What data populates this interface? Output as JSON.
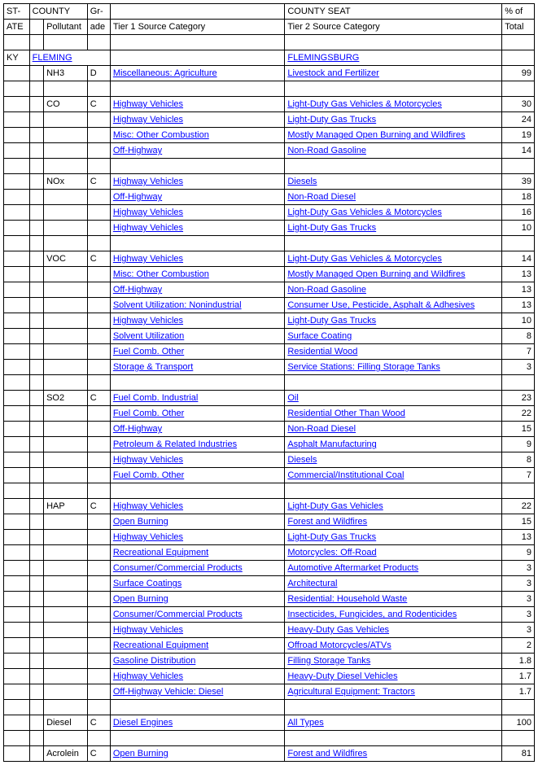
{
  "headers": {
    "row1": {
      "state": "ST-",
      "county": "COUNTY",
      "grade": "Gr-",
      "county_seat": "COUNTY SEAT",
      "pct": "% of"
    },
    "row2": {
      "state": "ATE",
      "pollutant": "Pollutant",
      "grade": "ade",
      "tier1": "Tier 1 Source Category",
      "tier2": "Tier 2 Source Category",
      "pct": "Total"
    }
  },
  "location": {
    "state": "KY",
    "county": "FLEMING",
    "seat": "FLEMINGSBURG"
  },
  "rows": [
    {
      "pollutant": "NH3",
      "grade": "D",
      "tier1": "Miscellaneous: Agriculture",
      "tier2": "Livestock and Fertilizer",
      "pct": "99"
    },
    {
      "blank": true
    },
    {
      "pollutant": "CO",
      "grade": "C",
      "tier1": "Highway Vehicles",
      "tier2": "Light-Duty Gas Vehicles & Motorcycles",
      "pct": "30"
    },
    {
      "tier1": "Highway Vehicles",
      "tier2": "Light-Duty Gas Trucks",
      "pct": "24"
    },
    {
      "tier1": "Misc: Other Combustion",
      "tier2": "Mostly Managed Open Burning and Wildfires",
      "pct": "19"
    },
    {
      "tier1": "Off-Highway",
      "tier2": "Non-Road Gasoline",
      "pct": "14"
    },
    {
      "blank": true
    },
    {
      "pollutant": "NOx",
      "grade": "C",
      "tier1": "Highway Vehicles",
      "tier2": "Diesels",
      "pct": "39"
    },
    {
      "tier1": "Off-Highway",
      "tier2": "Non-Road Diesel",
      "pct": "18"
    },
    {
      "tier1": "Highway Vehicles",
      "tier2": "Light-Duty Gas Vehicles & Motorcycles",
      "pct": "16"
    },
    {
      "tier1": "Highway Vehicles",
      "tier2": "Light-Duty Gas Trucks",
      "pct": "10"
    },
    {
      "blank": true
    },
    {
      "pollutant": "VOC",
      "grade": "C",
      "tier1": "Highway Vehicles",
      "tier2": "Light-Duty Gas Vehicles & Motorcycles",
      "pct": "14"
    },
    {
      "tier1": "Misc: Other Combustion",
      "tier2": "Mostly Managed Open Burning and Wildfires",
      "pct": "13"
    },
    {
      "tier1": "Off-Highway",
      "tier2": "Non-Road Gasoline",
      "pct": "13"
    },
    {
      "tier1": "Solvent Utilization: Nonindustrial",
      "tier2": "Consumer Use, Pesticide, Asphalt & Adhesives",
      "pct": "13"
    },
    {
      "tier1": "Highway Vehicles",
      "tier2": "Light-Duty Gas Trucks",
      "pct": "10"
    },
    {
      "tier1": "Solvent Utilization",
      "tier2": "Surface Coating",
      "pct": "8"
    },
    {
      "tier1": "Fuel Comb. Other",
      "tier2": "Residential Wood",
      "pct": "7"
    },
    {
      "tier1": "Storage & Transport",
      "tier2": "Service Stations: Filling Storage Tanks",
      "pct": "3"
    },
    {
      "blank": true
    },
    {
      "pollutant": "SO2",
      "grade": "C",
      "tier1": "Fuel Comb. Industrial",
      "tier2": "Oil",
      "pct": "23"
    },
    {
      "tier1": "Fuel Comb. Other",
      "tier2": "Residential Other Than Wood",
      "pct": "22"
    },
    {
      "tier1": "Off-Highway",
      "tier2": "Non-Road Diesel",
      "pct": "15"
    },
    {
      "tier1": "Petroleum & Related Industries",
      "tier2": "Asphalt Manufacturing",
      "pct": "9"
    },
    {
      "tier1": "Highway Vehicles",
      "tier2": "Diesels",
      "pct": "8"
    },
    {
      "tier1": "Fuel Comb. Other",
      "tier2": "Commercial/Institutional Coal",
      "pct": "7"
    },
    {
      "blank": true
    },
    {
      "pollutant": "HAP",
      "grade": "C",
      "tier1": "Highway Vehicles",
      "tier2": "Light-Duty Gas Vehicles",
      "pct": "22"
    },
    {
      "tier1": "Open Burning",
      "tier2": "Forest and Wildfires",
      "pct": "15"
    },
    {
      "tier1": "Highway Vehicles",
      "tier2": "Light-Duty Gas Trucks",
      "pct": "13"
    },
    {
      "tier1": "Recreational Equipment",
      "tier2": "Motorcycles: Off-Road",
      "pct": "9"
    },
    {
      "tier1": "Consumer/Commercial Products",
      "tier2": "Automotive Aftermarket Products",
      "pct": "3"
    },
    {
      "tier1": "Surface Coatings",
      "tier2": "Architectural",
      "pct": "3"
    },
    {
      "tier1": "Open Burning",
      "tier2": "Residential: Household Waste",
      "pct": "3"
    },
    {
      "tier1": "Consumer/Commercial Products",
      "tier2": "Insecticides, Fungicides, and Rodenticides",
      "pct": "3"
    },
    {
      "tier1": "Highway Vehicles",
      "tier2": "Heavy-Duty Gas Vehicles",
      "pct": "3"
    },
    {
      "tier1": "Recreational Equipment",
      "tier2": "Offroad Motorcycles/ATVs",
      "pct": "2"
    },
    {
      "tier1": "Gasoline Distribution",
      "tier2": "Filling Storage Tanks",
      "pct": "1.8"
    },
    {
      "tier1": "Highway Vehicles",
      "tier2": "Heavy-Duty Diesel Vehicles",
      "pct": "1.7"
    },
    {
      "tier1": "Off-Highway Vehicle: Diesel",
      "tier2": "Agricultural Equipment: Tractors",
      "pct": "1.7"
    },
    {
      "blank": true
    },
    {
      "pollutant": "Diesel",
      "grade": "C",
      "tier1": "Diesel Engines",
      "tier2": "All Types",
      "pct": "100"
    },
    {
      "blank": true
    },
    {
      "pollutant": "Acrolein",
      "grade": "C",
      "tier1": "Open Burning",
      "tier2": "Forest and Wildfires",
      "pct": "81"
    }
  ]
}
